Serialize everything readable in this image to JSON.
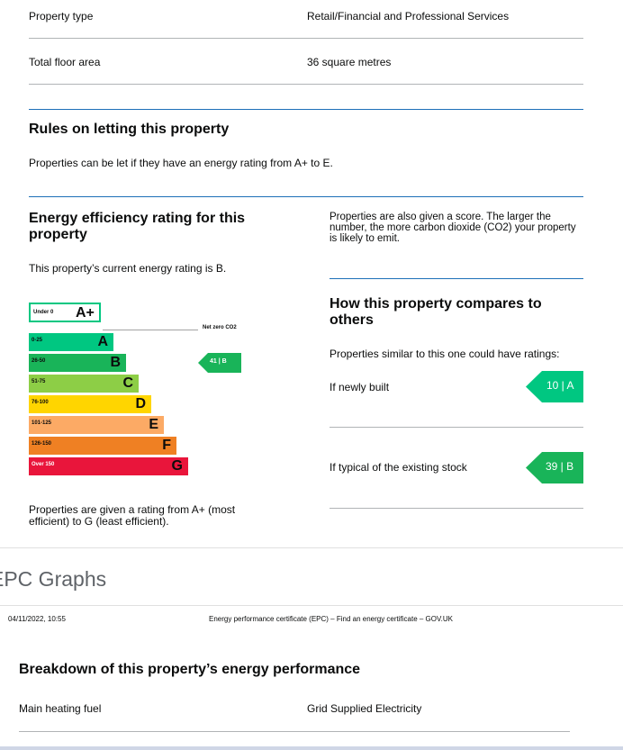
{
  "property": {
    "type_label": "Property type",
    "type_value": "Retail/Financial and Professional Services",
    "area_label": "Total floor area",
    "area_value": "36 square metres"
  },
  "letting": {
    "heading": "Rules on letting this property",
    "text": "Properties can be let if they have an energy rating from A+ to E."
  },
  "efficiency": {
    "heading": "Energy efficiency rating for this property",
    "current_text": "This property’s current energy rating is B.",
    "footer": "Properties are given a rating from A+ (most efficient) to G (least efficient).",
    "net_zero_label": "Net zero CO2",
    "current_tag": "41 | B",
    "bands": [
      {
        "range": "Under 0",
        "letter": "A+",
        "color": "#ffffff",
        "border": "#00c781"
      },
      {
        "range": "0-25",
        "letter": "A",
        "color": "#00c781"
      },
      {
        "range": "26-50",
        "letter": "B",
        "color": "#19b459"
      },
      {
        "range": "51-75",
        "letter": "C",
        "color": "#8dce46"
      },
      {
        "range": "76-100",
        "letter": "D",
        "color": "#ffd500"
      },
      {
        "range": "101-125",
        "letter": "E",
        "color": "#fcaa65"
      },
      {
        "range": "126-150",
        "letter": "F",
        "color": "#ef8023"
      },
      {
        "range": "Over 150",
        "letter": "G",
        "color": "#e9153b"
      }
    ]
  },
  "score_info": {
    "text": "Properties are also given a score. The larger the number, the more carbon dioxide (CO2) your property is likely to emit."
  },
  "compare": {
    "heading": "How this property compares to others",
    "intro": "Properties similar to this one could have ratings:",
    "newly_built_label": "If newly built",
    "newly_built_tag": "10 | A",
    "typical_label": "If typical of the existing stock",
    "typical_tag": "39 | B"
  },
  "section": {
    "title": "EPC Graphs"
  },
  "page2": {
    "timestamp": "04/11/2022, 10:55",
    "doc_title": "Energy performance certificate (EPC) – Find an energy certificate – GOV.UK",
    "heading": "Breakdown of this property’s energy performance",
    "fuel_label": "Main heating fuel",
    "fuel_value": "Grid Supplied Electricity"
  },
  "colors": {
    "rating_a": "#00c781",
    "rating_b": "#19b459",
    "section_bg": "#ffffff",
    "title_gray": "#5f6368"
  }
}
